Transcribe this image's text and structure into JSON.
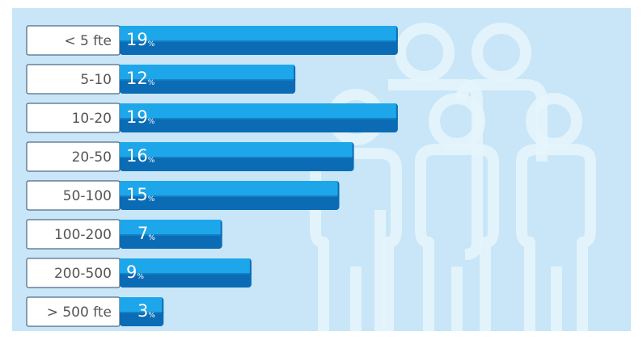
{
  "chart_data": {
    "type": "bar",
    "orientation": "horizontal",
    "categories": [
      "< 5 fte",
      "5-10",
      "10-20",
      "20-50",
      "50-100",
      "100-200",
      "200-500",
      "> 500 fte"
    ],
    "values": [
      19,
      12,
      19,
      16,
      15,
      7,
      9,
      3
    ],
    "unit": "%",
    "colors": {
      "top": "#1ea6ea",
      "bottom": "#0b6cb5"
    }
  }
}
